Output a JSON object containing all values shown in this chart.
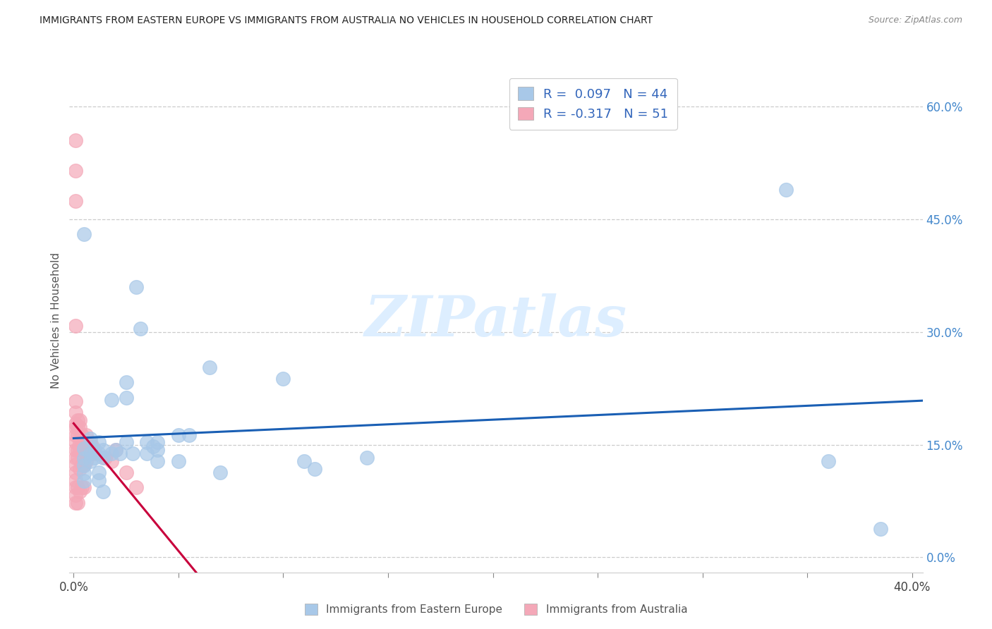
{
  "title": "IMMIGRANTS FROM EASTERN EUROPE VS IMMIGRANTS FROM AUSTRALIA NO VEHICLES IN HOUSEHOLD CORRELATION CHART",
  "source": "Source: ZipAtlas.com",
  "ylabel": "No Vehicles in Household",
  "right_yticks": [
    "60.0%",
    "45.0%",
    "30.0%",
    "15.0%",
    "0.0%"
  ],
  "right_ytick_vals": [
    0.6,
    0.45,
    0.3,
    0.15,
    0.0
  ],
  "xlim": [
    -0.002,
    0.405
  ],
  "ylim": [
    -0.02,
    0.65
  ],
  "blue_color": "#a8c8e8",
  "pink_color": "#f4a8b8",
  "blue_line_color": "#1a5fb4",
  "pink_line_color": "#c8003c",
  "watermark_color": "#ddeeff",
  "blue_points": [
    [
      0.005,
      0.43
    ],
    [
      0.005,
      0.145
    ],
    [
      0.005,
      0.132
    ],
    [
      0.005,
      0.122
    ],
    [
      0.005,
      0.112
    ],
    [
      0.005,
      0.102
    ],
    [
      0.008,
      0.158
    ],
    [
      0.008,
      0.138
    ],
    [
      0.008,
      0.128
    ],
    [
      0.01,
      0.143
    ],
    [
      0.01,
      0.133
    ],
    [
      0.012,
      0.153
    ],
    [
      0.012,
      0.138
    ],
    [
      0.012,
      0.113
    ],
    [
      0.012,
      0.103
    ],
    [
      0.014,
      0.143
    ],
    [
      0.014,
      0.133
    ],
    [
      0.014,
      0.088
    ],
    [
      0.018,
      0.21
    ],
    [
      0.018,
      0.138
    ],
    [
      0.02,
      0.143
    ],
    [
      0.022,
      0.138
    ],
    [
      0.025,
      0.233
    ],
    [
      0.025,
      0.213
    ],
    [
      0.025,
      0.153
    ],
    [
      0.028,
      0.138
    ],
    [
      0.03,
      0.36
    ],
    [
      0.032,
      0.305
    ],
    [
      0.035,
      0.153
    ],
    [
      0.035,
      0.138
    ],
    [
      0.038,
      0.148
    ],
    [
      0.04,
      0.153
    ],
    [
      0.04,
      0.143
    ],
    [
      0.04,
      0.128
    ],
    [
      0.05,
      0.163
    ],
    [
      0.05,
      0.128
    ],
    [
      0.055,
      0.163
    ],
    [
      0.065,
      0.253
    ],
    [
      0.07,
      0.113
    ],
    [
      0.1,
      0.238
    ],
    [
      0.11,
      0.128
    ],
    [
      0.115,
      0.118
    ],
    [
      0.14,
      0.133
    ],
    [
      0.34,
      0.49
    ],
    [
      0.36,
      0.128
    ],
    [
      0.385,
      0.038
    ]
  ],
  "pink_points": [
    [
      0.001,
      0.555
    ],
    [
      0.001,
      0.515
    ],
    [
      0.001,
      0.475
    ],
    [
      0.001,
      0.308
    ],
    [
      0.001,
      0.208
    ],
    [
      0.001,
      0.193
    ],
    [
      0.001,
      0.178
    ],
    [
      0.001,
      0.173
    ],
    [
      0.001,
      0.163
    ],
    [
      0.001,
      0.153
    ],
    [
      0.001,
      0.143
    ],
    [
      0.001,
      0.133
    ],
    [
      0.001,
      0.123
    ],
    [
      0.001,
      0.113
    ],
    [
      0.001,
      0.103
    ],
    [
      0.001,
      0.093
    ],
    [
      0.001,
      0.083
    ],
    [
      0.001,
      0.073
    ],
    [
      0.002,
      0.183
    ],
    [
      0.002,
      0.173
    ],
    [
      0.002,
      0.163
    ],
    [
      0.002,
      0.143
    ],
    [
      0.002,
      0.133
    ],
    [
      0.002,
      0.093
    ],
    [
      0.002,
      0.073
    ],
    [
      0.003,
      0.183
    ],
    [
      0.003,
      0.173
    ],
    [
      0.003,
      0.153
    ],
    [
      0.003,
      0.143
    ],
    [
      0.003,
      0.118
    ],
    [
      0.003,
      0.088
    ],
    [
      0.004,
      0.163
    ],
    [
      0.004,
      0.153
    ],
    [
      0.004,
      0.143
    ],
    [
      0.004,
      0.123
    ],
    [
      0.004,
      0.093
    ],
    [
      0.005,
      0.143
    ],
    [
      0.005,
      0.123
    ],
    [
      0.005,
      0.093
    ],
    [
      0.006,
      0.163
    ],
    [
      0.006,
      0.128
    ],
    [
      0.007,
      0.143
    ],
    [
      0.008,
      0.153
    ],
    [
      0.008,
      0.138
    ],
    [
      0.009,
      0.148
    ],
    [
      0.01,
      0.138
    ],
    [
      0.015,
      0.133
    ],
    [
      0.018,
      0.128
    ],
    [
      0.02,
      0.143
    ],
    [
      0.025,
      0.113
    ],
    [
      0.03,
      0.093
    ]
  ]
}
